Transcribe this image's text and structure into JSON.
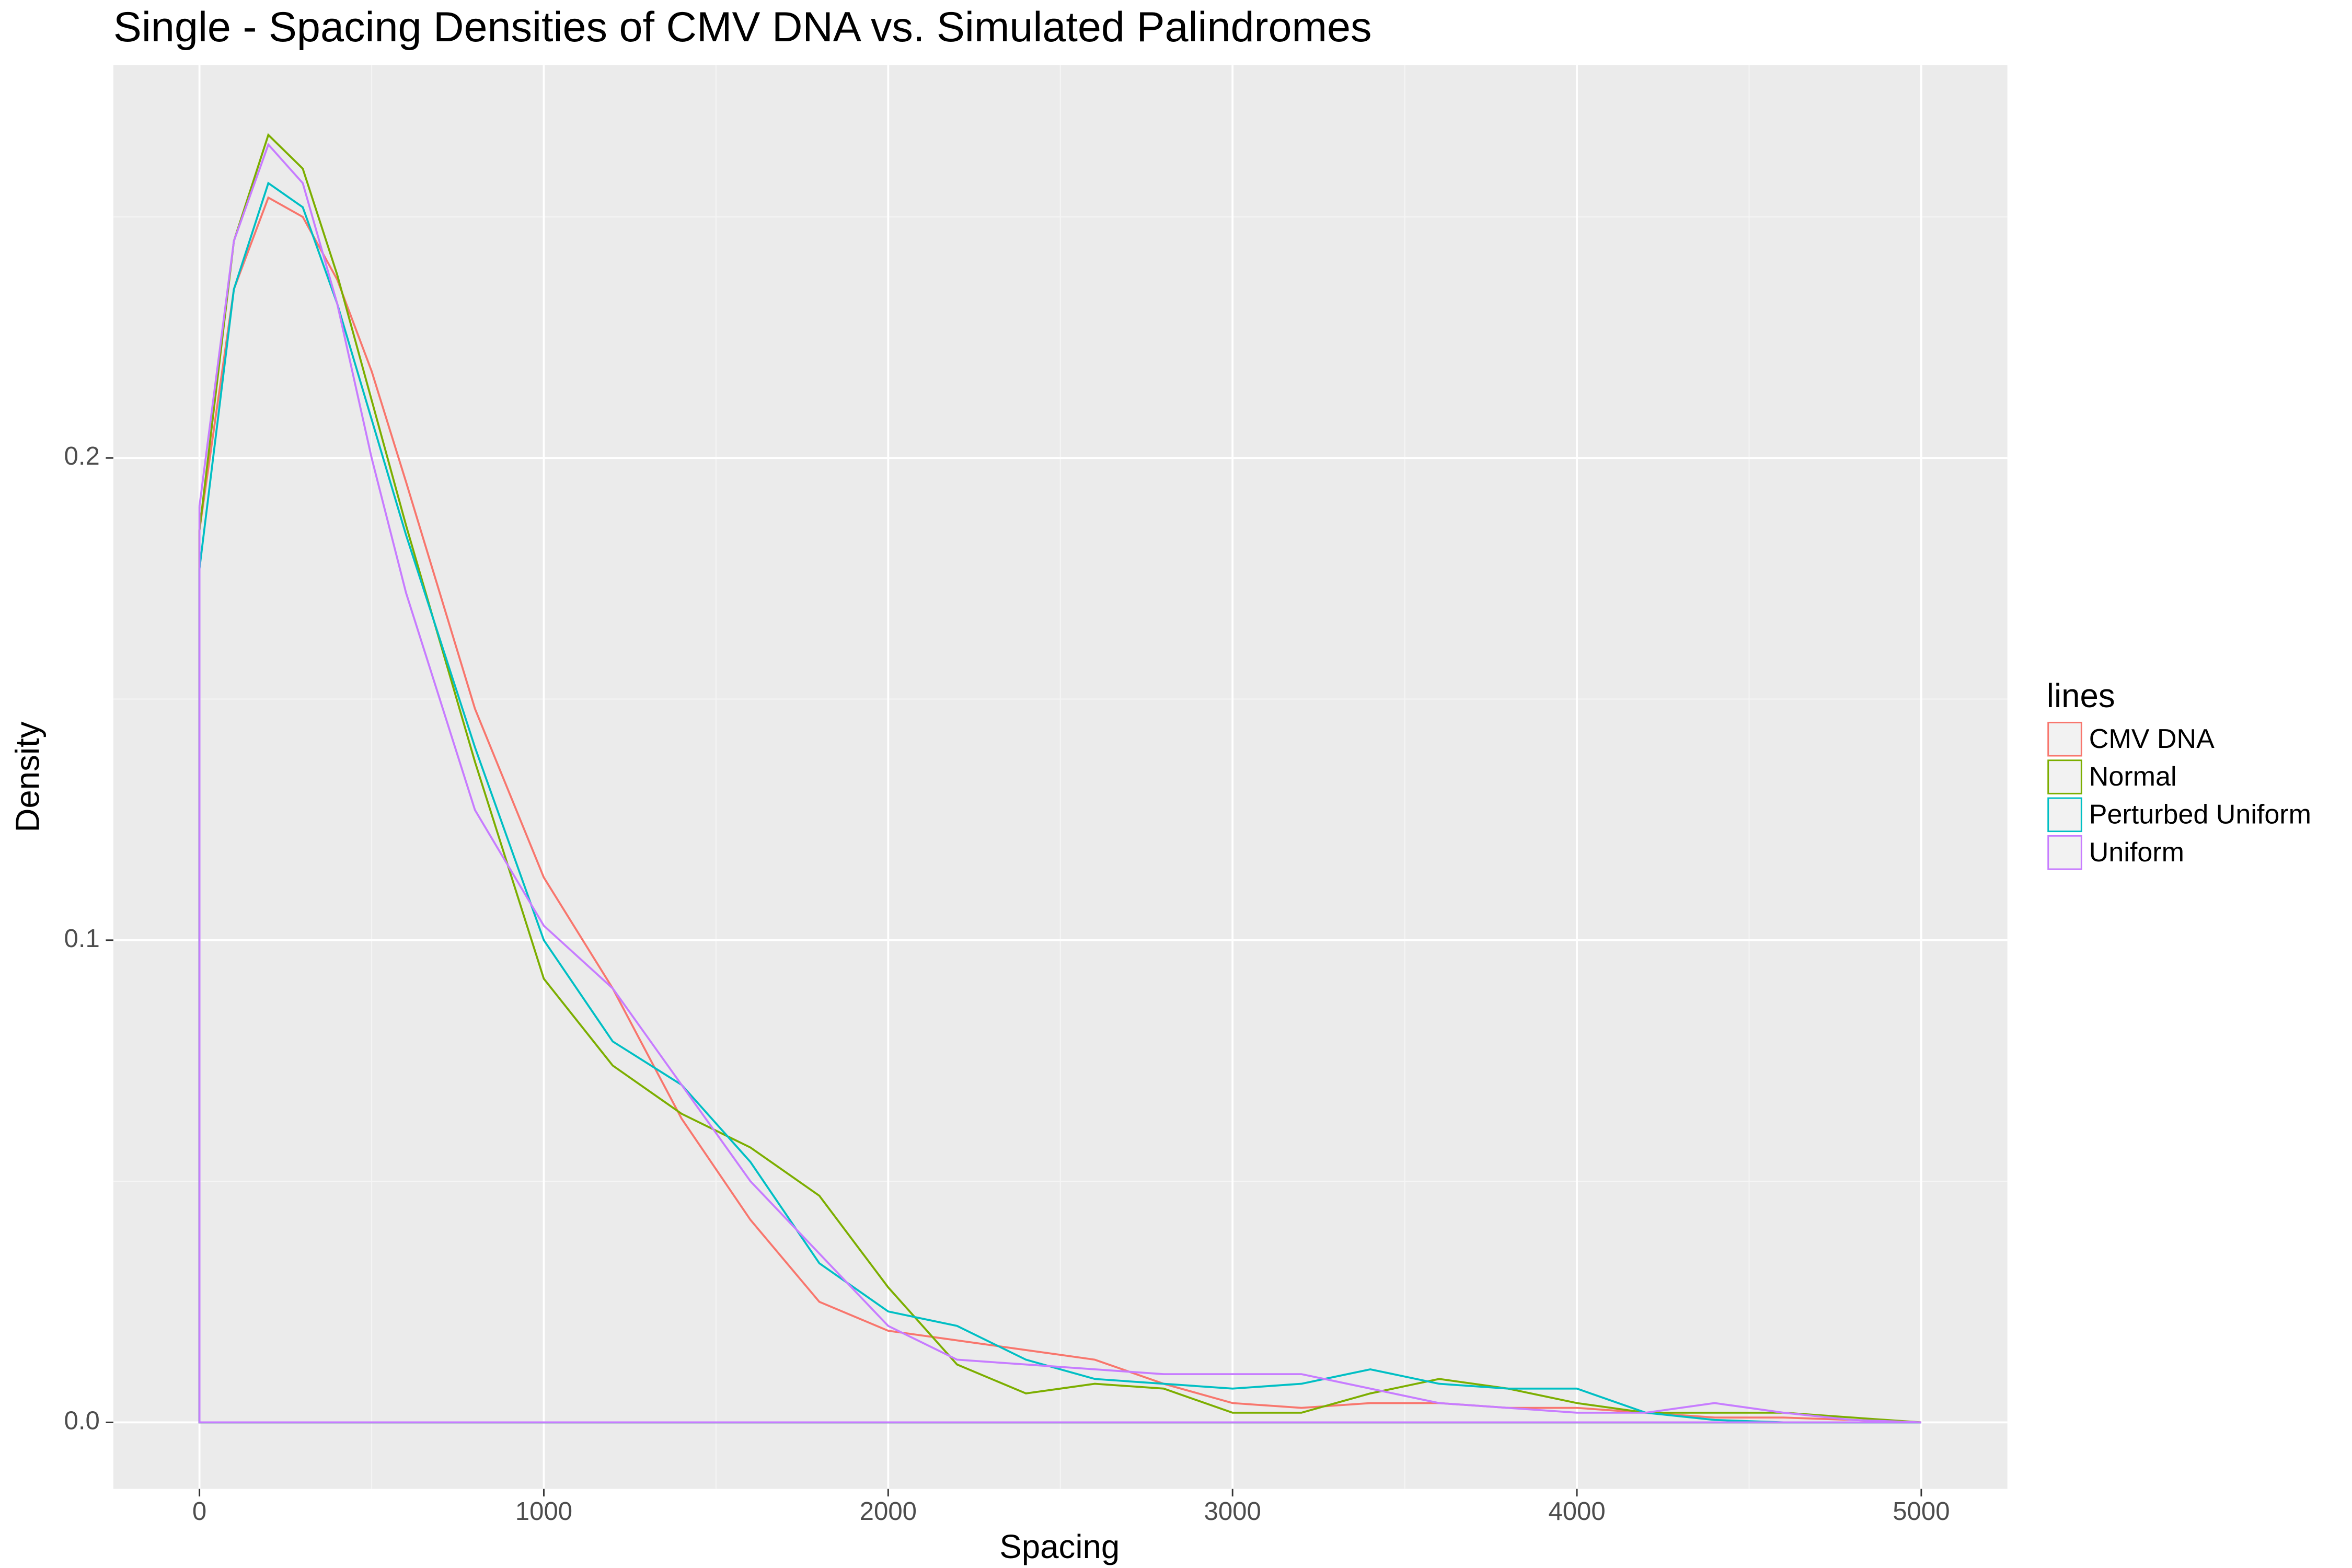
{
  "chart_data": {
    "type": "line",
    "title": "Single - Spacing Densities of CMV DNA vs. Simulated Palindromes",
    "x_label": "Spacing",
    "y_label": "Density",
    "legend_title": "lines",
    "legend_position": "right",
    "grid": true,
    "xlim": [
      -250,
      5250
    ],
    "ylim": [
      -0.0138,
      0.2815
    ],
    "xticks": [
      0,
      1000,
      2000,
      3000,
      4000,
      5000
    ],
    "yticks": [
      {
        "value": 0,
        "label": "0.0"
      },
      0.1,
      0.2
    ],
    "x_minor_ticks": [
      500,
      1500,
      2500,
      3500,
      4500
    ],
    "y_minor_ticks": [
      0.05,
      0.15,
      0.25
    ],
    "x": [
      0,
      100,
      200,
      300,
      400,
      500,
      600,
      800,
      1000,
      1200,
      1400,
      1600,
      1800,
      2000,
      2200,
      2400,
      2600,
      2800,
      3000,
      3200,
      3400,
      3600,
      3800,
      4000,
      4200,
      4400,
      4600,
      4800,
      5000
    ],
    "series": [
      {
        "name": "CMV DNA",
        "color": "#F8766D",
        "values": [
          0.185,
          0.235,
          0.254,
          0.25,
          0.237,
          0.218,
          0.195,
          0.148,
          0.113,
          0.09,
          0.063,
          0.042,
          0.025,
          0.019,
          0.017,
          0.015,
          0.013,
          0.008,
          0.004,
          0.003,
          0.004,
          0.004,
          0.003,
          0.003,
          0.002,
          0.001,
          0.001,
          0.0005,
          0
        ]
      },
      {
        "name": "Normal",
        "color": "#7CAE00",
        "values": [
          0.185,
          0.245,
          0.267,
          0.26,
          0.238,
          0.212,
          0.186,
          0.137,
          0.092,
          0.074,
          0.064,
          0.057,
          0.047,
          0.028,
          0.012,
          0.006,
          0.008,
          0.007,
          0.002,
          0.002,
          0.006,
          0.009,
          0.007,
          0.004,
          0.002,
          0.002,
          0.002,
          0.001,
          0
        ]
      },
      {
        "name": "Perturbed Uniform",
        "color": "#00BFC4",
        "values": [
          0.177,
          0.235,
          0.257,
          0.252,
          0.232,
          0.208,
          0.184,
          0.14,
          0.1,
          0.079,
          0.07,
          0.054,
          0.033,
          0.023,
          0.02,
          0.013,
          0.009,
          0.008,
          0.007,
          0.008,
          0.011,
          0.008,
          0.007,
          0.007,
          0.002,
          0.0005,
          0,
          0,
          0
        ]
      },
      {
        "name": "Uniform",
        "color": "#C77CFF",
        "values": [
          0.19,
          0.245,
          0.265,
          0.257,
          0.232,
          0.2,
          0.172,
          0.127,
          0.103,
          0.09,
          0.07,
          0.05,
          0.035,
          0.02,
          0.013,
          0.012,
          0.011,
          0.01,
          0.01,
          0.01,
          0.007,
          0.004,
          0.003,
          0.002,
          0.002,
          0.004,
          0.002,
          0.0005,
          0
        ]
      }
    ]
  }
}
